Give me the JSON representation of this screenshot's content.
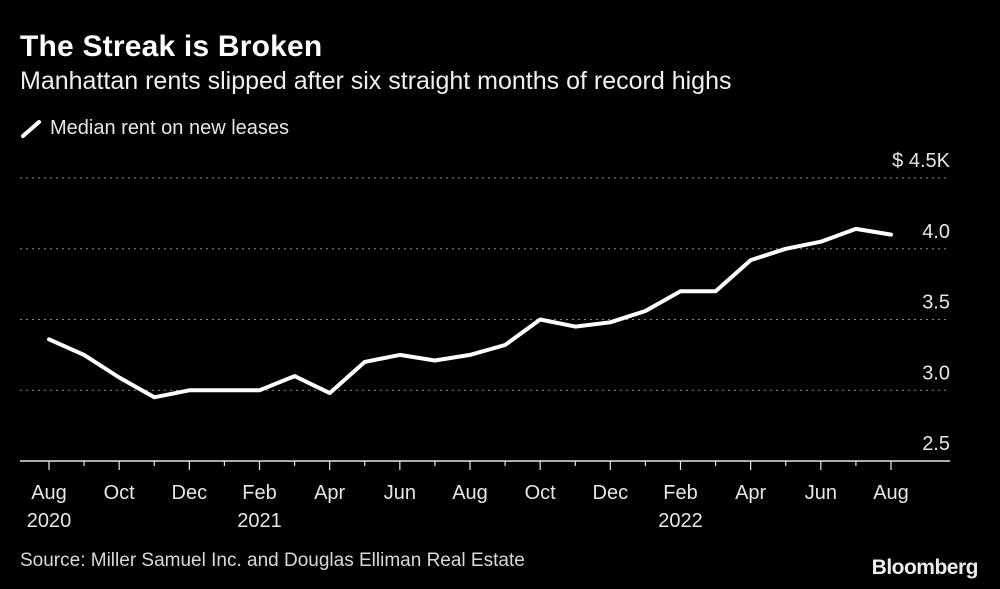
{
  "header": {
    "title": "The Streak is Broken",
    "subtitle": "Manhattan rents slipped after six straight months of record highs"
  },
  "legend": {
    "label": "Median rent on new leases",
    "icon": "line-swatch-icon"
  },
  "footer": {
    "source": "Source: Miller Samuel Inc. and Douglas Elliman Real Estate",
    "brand": "Bloomberg"
  },
  "colors": {
    "background": "#000000",
    "line": "#ffffff",
    "grid": "#8a8a8a"
  },
  "chart_data": {
    "type": "line",
    "title": "The Streak is Broken",
    "subtitle": "Manhattan rents slipped after six straight months of record highs",
    "xlabel": "",
    "ylabel": "Median rent on new leases",
    "ylim": [
      2.5,
      4.5
    ],
    "yticks": [
      2.5,
      3.0,
      3.5,
      4.0,
      4.5
    ],
    "ytick_labels": [
      "2.5",
      "3.0",
      "3.5",
      "4.0",
      "$ 4.5K"
    ],
    "grid": true,
    "x": [
      "2020-08",
      "2020-09",
      "2020-10",
      "2020-11",
      "2020-12",
      "2021-01",
      "2021-02",
      "2021-03",
      "2021-04",
      "2021-05",
      "2021-06",
      "2021-07",
      "2021-08",
      "2021-09",
      "2021-10",
      "2021-11",
      "2021-12",
      "2022-01",
      "2022-02",
      "2022-03",
      "2022-04",
      "2022-05",
      "2022-06",
      "2022-07",
      "2022-08"
    ],
    "xticks": [
      {
        "label": "Aug",
        "year": "2020",
        "index": 0
      },
      {
        "label": "Oct",
        "year": "",
        "index": 2
      },
      {
        "label": "Dec",
        "year": "",
        "index": 4
      },
      {
        "label": "Feb",
        "year": "2021",
        "index": 6
      },
      {
        "label": "Apr",
        "year": "",
        "index": 8
      },
      {
        "label": "Jun",
        "year": "",
        "index": 10
      },
      {
        "label": "Aug",
        "year": "",
        "index": 12
      },
      {
        "label": "Oct",
        "year": "",
        "index": 14
      },
      {
        "label": "Dec",
        "year": "",
        "index": 16
      },
      {
        "label": "Feb",
        "year": "2022",
        "index": 18
      },
      {
        "label": "Apr",
        "year": "",
        "index": 20
      },
      {
        "label": "Jun",
        "year": "",
        "index": 22
      },
      {
        "label": "Aug",
        "year": "",
        "index": 24
      }
    ],
    "series": [
      {
        "name": "Median rent on new leases",
        "values": [
          3.36,
          3.25,
          3.09,
          2.95,
          3.0,
          3.0,
          3.0,
          3.1,
          2.98,
          3.2,
          3.25,
          3.21,
          3.25,
          3.32,
          3.5,
          3.45,
          3.48,
          3.56,
          3.7,
          3.7,
          3.92,
          4.0,
          4.05,
          4.14,
          4.1
        ]
      }
    ]
  }
}
